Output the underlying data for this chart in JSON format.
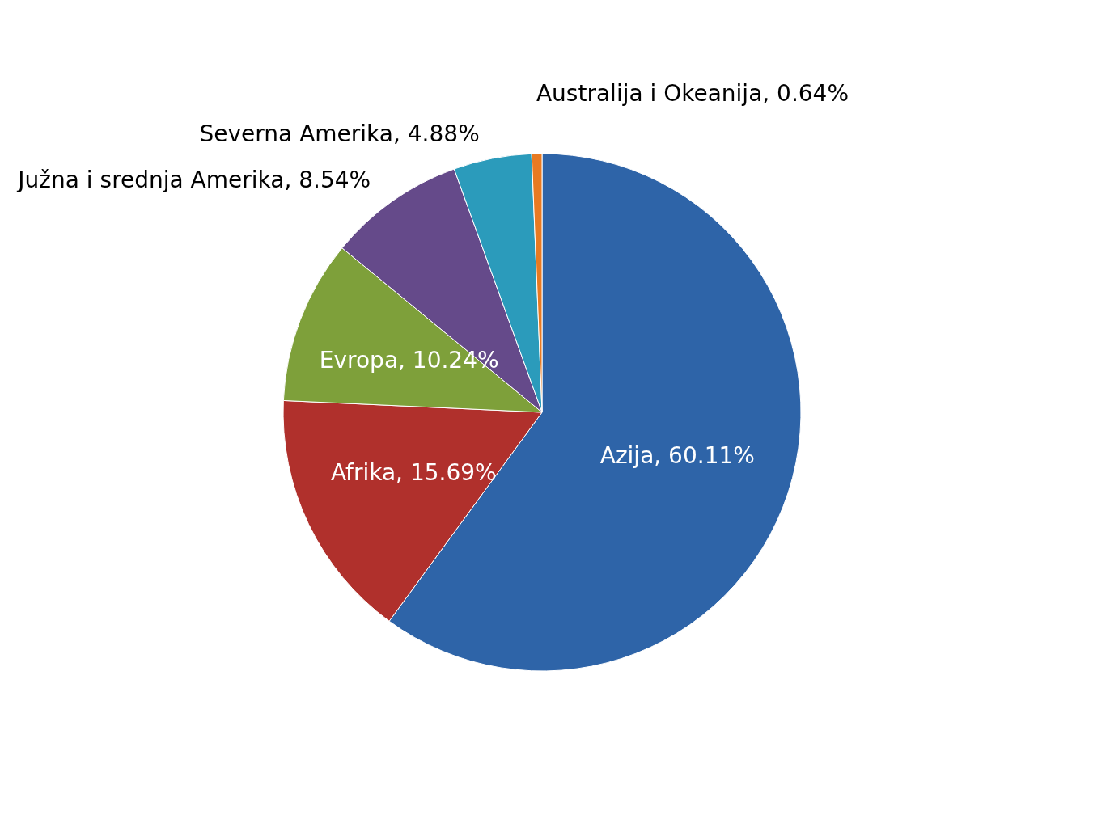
{
  "chart_data": {
    "type": "pie",
    "categories": [
      "Azija",
      "Afrika",
      "Evropa",
      "Južna i srednja Amerika",
      "Severna Amerika",
      "Australija i Okeanija"
    ],
    "values": [
      60.11,
      15.69,
      10.24,
      8.54,
      4.88,
      0.64
    ],
    "colors": [
      "#2e64a8",
      "#b0302c",
      "#7ea03a",
      "#654a8a",
      "#2b9bbb",
      "#e87a22"
    ],
    "value_labels": [
      "60.11%",
      "15.69%",
      "10.24%",
      "8.54%",
      "4.88%",
      "0.64%"
    ]
  }
}
